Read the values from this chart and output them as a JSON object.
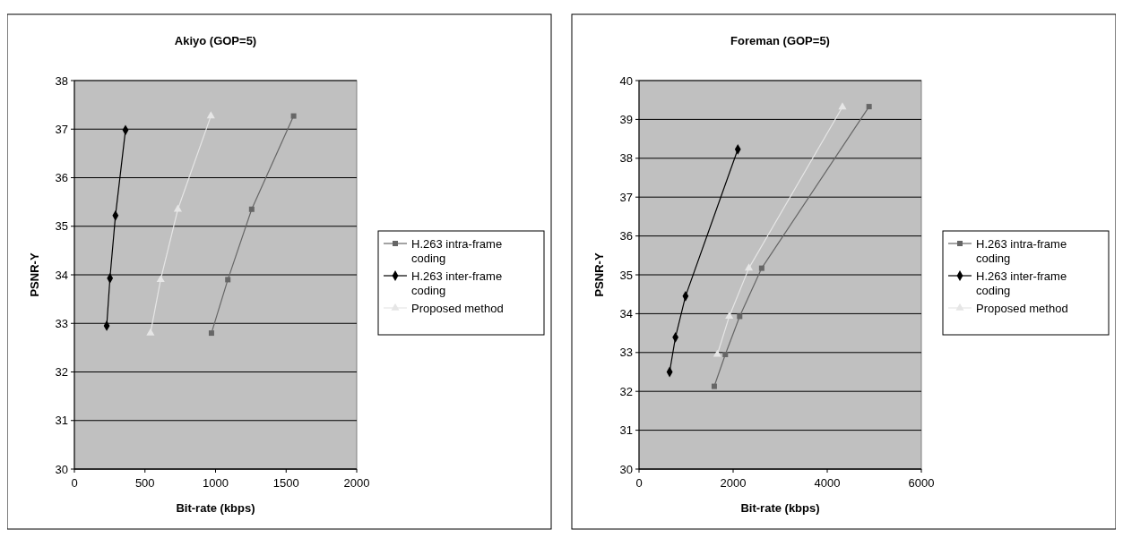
{
  "chart_data": [
    {
      "type": "line",
      "title": "Akiyo (GOP=5)",
      "xlabel": "Bit-rate (kbps)",
      "ylabel": "PSNR-Y",
      "xlim": [
        0,
        2000
      ],
      "xticks": [
        0,
        500,
        1000,
        1500,
        2000
      ],
      "ylim": [
        30,
        38
      ],
      "yticks": [
        30,
        31,
        32,
        33,
        34,
        35,
        36,
        37,
        38
      ],
      "grid": "y",
      "legend": "right",
      "series": [
        {
          "name": "H.263 intra-frame coding",
          "color": "#666666",
          "marker": "square",
          "x": [
            971,
            1087,
            1256,
            1553
          ],
          "values": [
            32.8,
            33.9,
            35.35,
            37.27
          ]
        },
        {
          "name": "H.263 inter-frame coding",
          "color": "#000000",
          "marker": "diamond",
          "x": [
            229,
            252,
            291,
            362
          ],
          "values": [
            32.95,
            33.93,
            35.22,
            36.98
          ]
        },
        {
          "name": "Proposed method",
          "color": "#e6e6e6",
          "marker": "triangle",
          "x": [
            539,
            611,
            733,
            967
          ],
          "values": [
            32.8,
            33.9,
            35.35,
            37.27
          ]
        }
      ]
    },
    {
      "type": "line",
      "title": "Foreman (GOP=5)",
      "xlabel": "Bit-rate (kbps)",
      "ylabel": "PSNR-Y",
      "xlim": [
        0,
        6000
      ],
      "xticks": [
        0,
        2000,
        4000,
        6000
      ],
      "ylim": [
        30,
        40
      ],
      "yticks": [
        30,
        31,
        32,
        33,
        34,
        35,
        36,
        37,
        38,
        39,
        40
      ],
      "grid": "y",
      "legend": "right",
      "series": [
        {
          "name": "H.263 intra-frame coding",
          "color": "#666666",
          "marker": "square",
          "x": [
            1599,
            1834,
            2139,
            2607,
            4889
          ],
          "values": [
            32.13,
            32.95,
            33.93,
            35.17,
            39.33
          ]
        },
        {
          "name": "H.263 inter-frame coding",
          "color": "#000000",
          "marker": "diamond",
          "x": [
            650,
            774,
            988,
            2100
          ],
          "values": [
            32.5,
            33.39,
            34.45,
            38.23
          ]
        },
        {
          "name": "Proposed method",
          "color": "#e6e6e6",
          "marker": "triangle",
          "x": [
            1664,
            1918,
            2334,
            4323
          ],
          "values": [
            32.95,
            33.93,
            35.17,
            39.32
          ]
        }
      ]
    }
  ]
}
